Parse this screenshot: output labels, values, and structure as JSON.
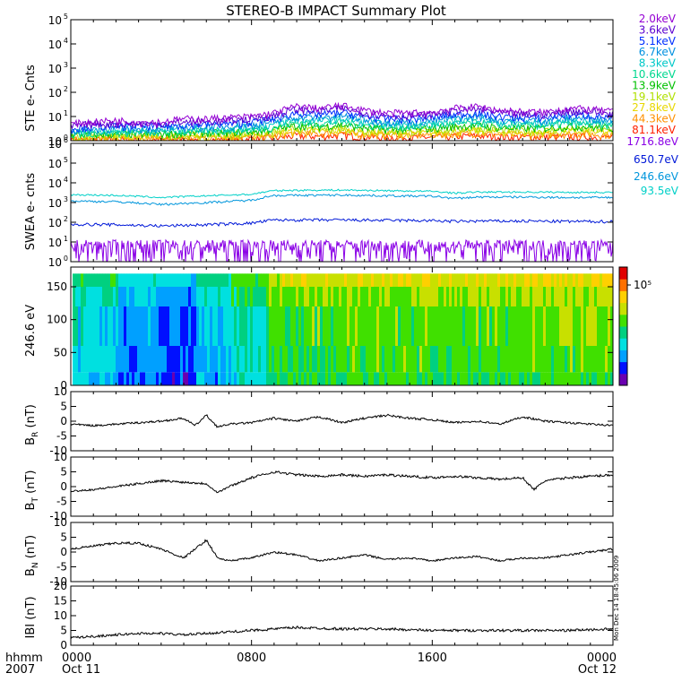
{
  "title": "STEREO-B IMPACT Summary Plot",
  "footer": {
    "row1_label": "hhmm",
    "row2_label": "2007",
    "ticks": [
      {
        "time": "0000",
        "date": "Oct 11",
        "hour": 0
      },
      {
        "time": "0800",
        "date": "",
        "hour": 8
      },
      {
        "time": "1600",
        "date": "",
        "hour": 16
      },
      {
        "time": "0000",
        "date": "Oct 12",
        "hour": 24
      }
    ]
  },
  "timestamp": "Mon Dec 14 18:45:06 2009",
  "colors": {
    "axis": "#000000",
    "background": "#ffffff"
  },
  "chart_data": [
    {
      "id": "ste",
      "type": "line",
      "ylabel": "STE e- Cnts",
      "yscale": "log",
      "ylim": [
        1,
        100000
      ],
      "yticks": [
        {
          "value": 1,
          "base": "10",
          "exp": "0"
        },
        {
          "value": 10,
          "base": "10",
          "exp": "1"
        },
        {
          "value": 100,
          "base": "10",
          "exp": "2"
        },
        {
          "value": 1000,
          "base": "10",
          "exp": "3"
        },
        {
          "value": 10000,
          "base": "10",
          "exp": "4"
        },
        {
          "value": 100000,
          "base": "10",
          "exp": "5"
        }
      ],
      "x": [
        0,
        1,
        2,
        3,
        4,
        5,
        6,
        7,
        8,
        9,
        10,
        11,
        12,
        13,
        14,
        15,
        16,
        17,
        18,
        19,
        20,
        21,
        22,
        23,
        24
      ],
      "series": [
        {
          "name": "2.0keV",
          "color": "#9400d3",
          "values": [
            5,
            6,
            7,
            6,
            6,
            8,
            8,
            9,
            10,
            14,
            26,
            22,
            28,
            18,
            14,
            14,
            15,
            22,
            26,
            18,
            16,
            15,
            22,
            20,
            16
          ]
        },
        {
          "name": "3.6keV",
          "color": "#5a00d0",
          "values": [
            4,
            5,
            5,
            5,
            5,
            6,
            6,
            7,
            8,
            11,
            20,
            17,
            22,
            14,
            11,
            11,
            12,
            17,
            20,
            14,
            12,
            12,
            17,
            16,
            13
          ]
        },
        {
          "name": "5.1keV",
          "color": "#0030ff",
          "values": [
            3.2,
            3.8,
            4,
            4,
            4,
            4.5,
            4.8,
            5,
            6,
            8,
            14,
            12,
            15,
            10,
            8,
            8,
            9,
            12,
            14,
            10,
            9,
            9,
            12,
            11,
            9
          ]
        },
        {
          "name": "6.7keV",
          "color": "#0090e0",
          "values": [
            2.6,
            3,
            3.2,
            3.2,
            3.2,
            3.6,
            3.8,
            4,
            4.6,
            6,
            10,
            9,
            11,
            7.5,
            6,
            6,
            6.8,
            9,
            10,
            7.5,
            7,
            7,
            9,
            8.5,
            7
          ]
        },
        {
          "name": "8.3keV",
          "color": "#00c8c8",
          "values": [
            2.2,
            2.5,
            2.6,
            2.6,
            2.6,
            2.9,
            3,
            3.2,
            3.6,
            4.6,
            7.5,
            6.8,
            8,
            5.8,
            4.8,
            4.8,
            5.2,
            6.8,
            7.5,
            5.8,
            5.4,
            5.4,
            6.8,
            6.4,
            5.4
          ]
        },
        {
          "name": "10.6keV",
          "color": "#00d890",
          "values": [
            1.9,
            2.1,
            2.2,
            2.2,
            2.2,
            2.4,
            2.5,
            2.6,
            2.9,
            3.6,
            5.6,
            5.1,
            6,
            4.4,
            3.8,
            3.8,
            4.1,
            5.1,
            5.6,
            4.4,
            4.2,
            4.2,
            5.1,
            4.8,
            4.2
          ]
        },
        {
          "name": "13.9keV",
          "color": "#00c000",
          "values": [
            1.7,
            1.8,
            1.9,
            1.9,
            1.9,
            2,
            2.1,
            2.2,
            2.4,
            2.9,
            4.3,
            3.9,
            4.5,
            3.4,
            3,
            3,
            3.2,
            3.9,
            4.3,
            3.4,
            3.3,
            3.3,
            3.9,
            3.7,
            3.3
          ]
        },
        {
          "name": "19.1keV",
          "color": "#b0e000",
          "values": [
            1.5,
            1.6,
            1.6,
            1.6,
            1.6,
            1.7,
            1.8,
            1.8,
            2,
            2.3,
            3.3,
            3,
            3.4,
            2.7,
            2.4,
            2.4,
            2.6,
            3,
            3.3,
            2.7,
            2.6,
            2.6,
            3,
            2.9,
            2.6
          ]
        },
        {
          "name": "27.8keV",
          "color": "#e8d800",
          "values": [
            1.3,
            1.4,
            1.4,
            1.4,
            1.4,
            1.5,
            1.5,
            1.6,
            1.7,
            1.9,
            2.6,
            2.4,
            2.7,
            2.2,
            2,
            2,
            2.1,
            2.4,
            2.6,
            2.2,
            2.1,
            2.1,
            2.4,
            2.3,
            2.1
          ]
        },
        {
          "name": "44.3keV",
          "color": "#ff9000",
          "values": [
            1.2,
            1.2,
            1.25,
            1.25,
            1.25,
            1.3,
            1.3,
            1.35,
            1.4,
            1.6,
            2.1,
            1.9,
            2.2,
            1.8,
            1.7,
            1.7,
            1.75,
            1.9,
            2.1,
            1.8,
            1.75,
            1.75,
            1.9,
            1.85,
            1.75
          ]
        },
        {
          "name": "81.1keV",
          "color": "#ff2000",
          "values": [
            1.05,
            1.08,
            1.1,
            1.1,
            1.1,
            1.12,
            1.12,
            1.15,
            1.2,
            1.3,
            1.6,
            1.5,
            1.7,
            1.45,
            1.35,
            1.35,
            1.4,
            1.5,
            1.6,
            1.45,
            1.4,
            1.4,
            1.5,
            1.48,
            1.4
          ]
        }
      ]
    },
    {
      "id": "swea",
      "type": "line",
      "ylabel": "SWEA e- cnts",
      "yscale": "log",
      "ylim": [
        1,
        1000000
      ],
      "yticks": [
        {
          "value": 1,
          "base": "10",
          "exp": "0"
        },
        {
          "value": 10,
          "base": "10",
          "exp": "1"
        },
        {
          "value": 100,
          "base": "10",
          "exp": "2"
        },
        {
          "value": 1000,
          "base": "10",
          "exp": "3"
        },
        {
          "value": 10000,
          "base": "10",
          "exp": "4"
        },
        {
          "value": 100000,
          "base": "10",
          "exp": "5"
        },
        {
          "value": 1000000,
          "base": "10",
          "exp": "6"
        }
      ],
      "x": [
        0,
        2,
        4,
        6,
        8,
        9,
        10,
        12,
        14,
        16,
        17,
        18,
        20,
        22,
        24
      ],
      "series": [
        {
          "name": "1716.8eV",
          "color": "#8a00e6",
          "values": [
            6,
            6,
            6,
            6,
            6,
            6,
            6,
            6,
            6,
            6,
            6,
            6,
            6,
            6,
            6
          ]
        },
        {
          "name": "650.7eV",
          "color": "#0018d8",
          "values": [
            80,
            75,
            65,
            75,
            90,
            130,
            130,
            130,
            125,
            120,
            110,
            115,
            115,
            110,
            110
          ]
        },
        {
          "name": "246.6eV",
          "color": "#0096dc",
          "values": [
            1200,
            1100,
            800,
            1000,
            1300,
            2300,
            2300,
            2400,
            2200,
            2100,
            1600,
            1900,
            1900,
            1800,
            1800
          ]
        },
        {
          "name": "93.5eV",
          "color": "#00d0c8",
          "values": [
            2500,
            2300,
            1800,
            2200,
            2600,
            4000,
            4200,
            4300,
            4000,
            3700,
            3000,
            3400,
            3400,
            3300,
            3300
          ]
        }
      ]
    },
    {
      "id": "pad",
      "type": "heatmap",
      "ylabel": "246.6 eV",
      "ylim": [
        0,
        180
      ],
      "yticks": [
        0,
        50,
        100,
        150
      ],
      "colorbar_label": "10⁵",
      "colorbar_colors": [
        "#6a00b0",
        "#0010ff",
        "#00a0ff",
        "#00e0e0",
        "#00d080",
        "#40e000",
        "#c8e000",
        "#ffd000",
        "#ff7000",
        "#e00000"
      ],
      "time_bins": [
        {
          "t0": 0,
          "t1": 2,
          "level": 3.0
        },
        {
          "t0": 2,
          "t1": 4,
          "level": 2.0
        },
        {
          "t0": 4,
          "t1": 5.5,
          "level": 1.4
        },
        {
          "t0": 5.5,
          "t1": 7,
          "level": 2.6
        },
        {
          "t0": 7,
          "t1": 8.7,
          "level": 3.6
        },
        {
          "t0": 8.7,
          "t1": 12,
          "level": 4.9
        },
        {
          "t0": 12,
          "t1": 16,
          "level": 5.1
        },
        {
          "t0": 16,
          "t1": 20,
          "level": 5.0
        },
        {
          "t0": 20,
          "t1": 24,
          "level": 5.3
        }
      ],
      "pitch_rows": [
        {
          "a0": 0,
          "a1": 20,
          "offset": -0.5
        },
        {
          "a0": 20,
          "a1": 60,
          "offset": -0.2
        },
        {
          "a0": 60,
          "a1": 120,
          "offset": 0.0
        },
        {
          "a0": 120,
          "a1": 150,
          "offset": 0.5
        },
        {
          "a0": 150,
          "a1": 170,
          "offset": 1.2
        }
      ]
    },
    {
      "id": "br",
      "type": "line",
      "ylabel_main": "B",
      "ylabel_sub": "R",
      "ylabel_unit": "(nT)",
      "ylim": [
        -10,
        10
      ],
      "yticks": [
        -10,
        -5,
        0,
        5,
        10
      ],
      "x": [
        0,
        1,
        2,
        3,
        4,
        5,
        5.5,
        6,
        6.5,
        7,
        8,
        9,
        10,
        11,
        12,
        13,
        14,
        15,
        16,
        17,
        18,
        19,
        20,
        21,
        22,
        23,
        24
      ],
      "values": [
        -1,
        -1.5,
        -1,
        -0.5,
        0,
        1,
        -1.5,
        2,
        -2,
        -1,
        -0.5,
        1,
        0,
        1.5,
        -0.5,
        1,
        2,
        1,
        0.5,
        -0.5,
        0,
        -1,
        1.5,
        0,
        -0.5,
        -1,
        -1.5
      ],
      "color": "#000000"
    },
    {
      "id": "bt",
      "type": "line",
      "ylabel_main": "B",
      "ylabel_sub": "T",
      "ylabel_unit": "(nT)",
      "ylim": [
        -10,
        10
      ],
      "yticks": [
        -10,
        -5,
        0,
        5,
        10
      ],
      "x": [
        0,
        1,
        2,
        3,
        4,
        5,
        6,
        6.5,
        7,
        8,
        9,
        10,
        11,
        12,
        13,
        14,
        15,
        16,
        17,
        18,
        19,
        20,
        20.5,
        21,
        22,
        23,
        24
      ],
      "values": [
        -1.5,
        -1,
        0,
        1,
        2,
        1.5,
        1,
        -2,
        0,
        3,
        5,
        4,
        3.5,
        4,
        3.5,
        4,
        3.5,
        3,
        3.5,
        3,
        2.5,
        3,
        -1,
        2,
        3,
        3.5,
        4
      ],
      "color": "#000000"
    },
    {
      "id": "bn",
      "type": "line",
      "ylabel_main": "B",
      "ylabel_sub": "N",
      "ylabel_unit": "(nT)",
      "ylim": [
        -10,
        10
      ],
      "yticks": [
        -10,
        -5,
        0,
        5,
        10
      ],
      "x": [
        0,
        1,
        2,
        3,
        4,
        5,
        5.5,
        6,
        6.5,
        7,
        8,
        9,
        10,
        11,
        12,
        13,
        14,
        15,
        16,
        17,
        18,
        19,
        20,
        21,
        22,
        23,
        24
      ],
      "values": [
        1,
        2,
        3,
        3,
        1,
        -2,
        1,
        4,
        -2,
        -3,
        -2,
        0,
        -1,
        -3,
        -2,
        -1,
        -2.5,
        -2,
        -3,
        -2,
        -1.5,
        -3,
        -2,
        -2,
        -1,
        0,
        1
      ],
      "color": "#000000"
    },
    {
      "id": "bmag",
      "type": "line",
      "ylabel": "IBI (nT)",
      "ylim": [
        0,
        20
      ],
      "yticks": [
        0,
        5,
        10,
        15,
        20
      ],
      "x": [
        0,
        1,
        2,
        3,
        4,
        5,
        6,
        7,
        8,
        9,
        10,
        12,
        14,
        16,
        18,
        20,
        22,
        24
      ],
      "values": [
        2.5,
        3,
        3.5,
        4,
        4,
        3.5,
        4,
        4.5,
        5,
        5.5,
        6,
        5.5,
        5.5,
        5,
        5,
        5,
        5,
        5.5
      ],
      "color": "#000000"
    }
  ]
}
